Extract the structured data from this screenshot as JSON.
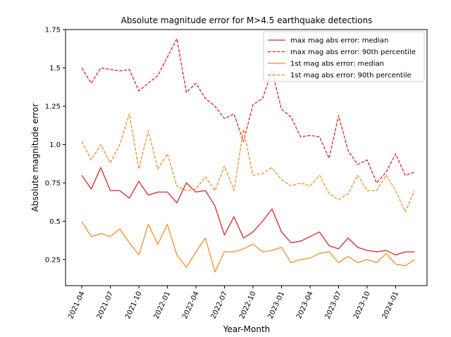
{
  "chart_data": {
    "type": "line",
    "title": "Absolute magnitude error for M>4.5 earthquake detections",
    "xlabel": "Year-Month",
    "ylabel": "Absolute magnitude error",
    "ylim": [
      0.08,
      1.75
    ],
    "grid": false,
    "legend_position": "top-right",
    "x": [
      "2021-04",
      "2021-05",
      "2021-06",
      "2021-07",
      "2021-08",
      "2021-09",
      "2021-10",
      "2021-11",
      "2021-12",
      "2022-01",
      "2022-02",
      "2022-03",
      "2022-04",
      "2022-05",
      "2022-06",
      "2022-07",
      "2022-08",
      "2022-09",
      "2022-10",
      "2022-11",
      "2022-12",
      "2023-01",
      "2023-02",
      "2023-03",
      "2023-04",
      "2023-05",
      "2023-06",
      "2023-07",
      "2023-08",
      "2023-09",
      "2023-10",
      "2023-11",
      "2023-12",
      "2024-01",
      "2024-02",
      "2024-03"
    ],
    "x_ticks": [
      "2021-04",
      "2021-07",
      "2021-10",
      "2022-01",
      "2022-04",
      "2022-07",
      "2022-10",
      "2023-01",
      "2023-04",
      "2023-07",
      "2023-10",
      "2024-01"
    ],
    "y_ticks": [
      "0.25",
      "0.5",
      "0.75",
      "1.0",
      "1.25",
      "1.5",
      "1.75"
    ],
    "series": [
      {
        "name": "max mag abs error: median",
        "color": "#d62728",
        "dashed": false,
        "values": [
          0.8,
          0.71,
          0.85,
          0.7,
          0.7,
          0.65,
          0.76,
          0.67,
          0.69,
          0.69,
          0.62,
          0.75,
          0.69,
          0.7,
          0.6,
          0.41,
          0.53,
          0.39,
          0.43,
          0.5,
          0.58,
          0.43,
          0.36,
          0.37,
          0.4,
          0.43,
          0.34,
          0.32,
          0.39,
          0.33,
          0.31,
          0.3,
          0.31,
          0.28,
          0.3,
          0.3
        ]
      },
      {
        "name": "max mag abs error: 90th percentile",
        "color": "#d62728",
        "dashed": true,
        "values": [
          1.5,
          1.4,
          1.5,
          1.49,
          1.48,
          1.49,
          1.35,
          1.4,
          1.45,
          1.57,
          1.69,
          1.34,
          1.4,
          1.3,
          1.25,
          1.17,
          1.2,
          1.02,
          1.26,
          1.3,
          1.48,
          1.23,
          1.18,
          1.05,
          1.06,
          1.05,
          0.91,
          1.19,
          0.96,
          0.87,
          0.9,
          0.75,
          0.82,
          0.94,
          0.8,
          0.82
        ]
      },
      {
        "name": "1st mag abs error: median",
        "color": "#f28e2b",
        "dashed": false,
        "values": [
          0.5,
          0.4,
          0.42,
          0.4,
          0.45,
          0.36,
          0.28,
          0.48,
          0.35,
          0.48,
          0.28,
          0.2,
          0.3,
          0.39,
          0.17,
          0.3,
          0.3,
          0.32,
          0.35,
          0.3,
          0.31,
          0.33,
          0.23,
          0.25,
          0.26,
          0.29,
          0.3,
          0.23,
          0.27,
          0.23,
          0.25,
          0.23,
          0.29,
          0.22,
          0.21,
          0.25
        ]
      },
      {
        "name": "1st mag abs error: 90th percentile",
        "color": "#f28e2b",
        "dashed": true,
        "values": [
          1.02,
          0.9,
          1.0,
          0.88,
          1.0,
          1.2,
          0.84,
          1.09,
          0.84,
          0.94,
          0.73,
          0.7,
          0.71,
          0.79,
          0.7,
          0.86,
          0.7,
          1.1,
          0.8,
          0.81,
          0.85,
          0.77,
          0.73,
          0.75,
          0.73,
          0.8,
          0.68,
          0.64,
          0.68,
          0.8,
          0.7,
          0.7,
          0.8,
          0.7,
          0.56,
          0.7
        ]
      }
    ]
  }
}
